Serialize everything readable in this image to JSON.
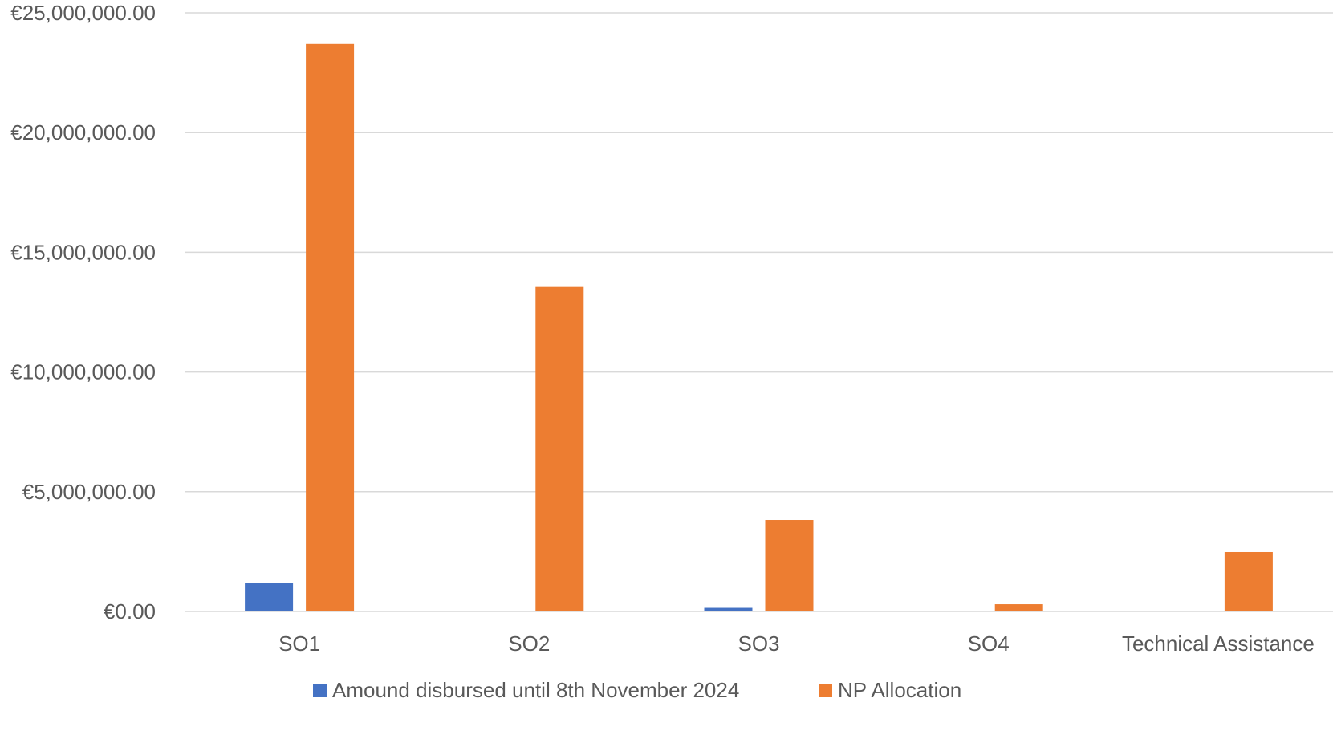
{
  "chart_data": {
    "type": "bar",
    "title": "",
    "xlabel": "",
    "ylabel": "",
    "categories": [
      "SO1",
      "SO2",
      "SO3",
      "SO4",
      "Technical Assistance"
    ],
    "series": [
      {
        "name": "Amound disbursed until 8th November 2024",
        "color": "#4472C4",
        "values": [
          1200000,
          0,
          150000,
          0,
          20000
        ]
      },
      {
        "name": "NP Allocation",
        "color": "#ED7D31",
        "values": [
          23700000,
          13550000,
          3820000,
          300000,
          2480000
        ]
      }
    ],
    "ylim": [
      0,
      25000000
    ],
    "yticks": [
      0,
      5000000,
      10000000,
      15000000,
      20000000,
      25000000
    ],
    "ytick_labels": [
      "€0.00",
      "€5,000,000.00",
      "€10,000,000.00",
      "€15,000,000.00",
      "€20,000,000.00",
      "€25,000,000.00"
    ],
    "grid": true,
    "legend_position": "bottom"
  }
}
